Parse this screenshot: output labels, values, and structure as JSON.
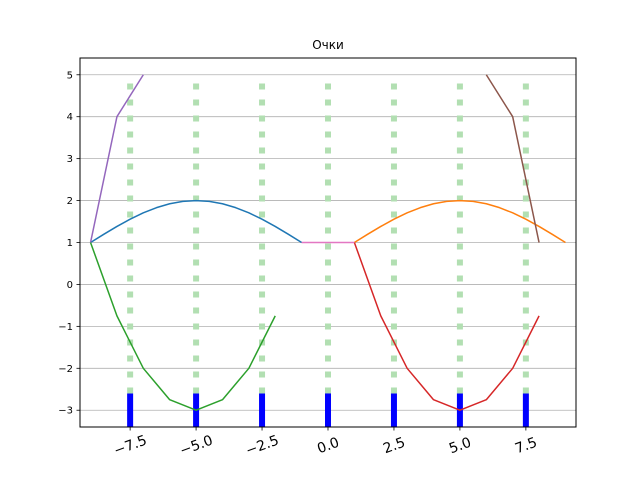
{
  "chart_data": {
    "type": "line",
    "title": "Очки",
    "xlabel": "",
    "ylabel": "",
    "xlim": [
      -9.4,
      9.4
    ],
    "ylim": [
      -3.4,
      5.4
    ],
    "grid": "horizontal",
    "xticks": [
      -7.5,
      -5.0,
      -2.5,
      0.0,
      2.5,
      5.0,
      7.5
    ],
    "xtick_labels": [
      "−7.5",
      "−5.0",
      "−2.5",
      "0.0",
      "2.5",
      "5.0",
      "7.5"
    ],
    "xtick_rotation_deg": 20,
    "yticks": [
      -3,
      -2,
      -1,
      0,
      1,
      2,
      3,
      4,
      5
    ],
    "ytick_labels": [
      "−3",
      "−2",
      "−1",
      "0",
      "1",
      "2",
      "3",
      "4",
      "5"
    ],
    "vertical_dotted_lines": {
      "x": [
        -7.5,
        -5.0,
        -2.5,
        0.0,
        2.5,
        5.0,
        7.5
      ],
      "y_range": [
        -2.6,
        5.0
      ],
      "color": "#b2dfb2"
    },
    "blue_bars": {
      "x": [
        -7.5,
        -5.0,
        -2.5,
        0.0,
        2.5,
        5.0,
        7.5
      ],
      "y_range": [
        -3.4,
        -2.6
      ],
      "color": "#0000ff"
    },
    "series": [
      {
        "color": "#1f77b4",
        "x": [
          -9.0,
          -8.5,
          -8.0,
          -7.5,
          -7.0,
          -6.5,
          -6.0,
          -5.5,
          -5.0,
          -4.5,
          -4.0,
          -3.5,
          -3.0,
          -2.5,
          -2.0,
          -1.5,
          -1.0
        ],
        "y": [
          1.0,
          1.195,
          1.383,
          1.556,
          1.707,
          1.831,
          1.924,
          1.981,
          2.0,
          1.981,
          1.924,
          1.831,
          1.707,
          1.556,
          1.383,
          1.195,
          1.0
        ]
      },
      {
        "color": "#ff7f0e",
        "x": [
          1.0,
          1.5,
          2.0,
          2.5,
          3.0,
          3.5,
          4.0,
          4.5,
          5.0,
          5.5,
          6.0,
          6.5,
          7.0,
          7.5,
          8.0,
          8.5,
          9.0
        ],
        "y": [
          1.0,
          1.195,
          1.383,
          1.556,
          1.707,
          1.831,
          1.924,
          1.981,
          2.0,
          1.981,
          1.924,
          1.831,
          1.707,
          1.556,
          1.383,
          1.195,
          1.0
        ]
      },
      {
        "color": "#2ca02c",
        "x": [
          -9.0,
          -8.0,
          -7.0,
          -6.0,
          -5.0,
          -4.0,
          -3.0,
          -2.0
        ],
        "y": [
          1.0,
          -0.75,
          -2.0,
          -2.75,
          -3.0,
          -2.75,
          -2.0,
          -0.75
        ]
      },
      {
        "color": "#d62728",
        "x": [
          1.0,
          2.0,
          3.0,
          4.0,
          5.0,
          6.0,
          7.0,
          8.0
        ],
        "y": [
          1.0,
          -0.75,
          -2.0,
          -2.75,
          -3.0,
          -2.75,
          -2.0,
          -0.75
        ]
      },
      {
        "color": "#9467bd",
        "x": [
          -9.0,
          -8.0,
          -7.0
        ],
        "y": [
          1.0,
          4.0,
          5.0
        ]
      },
      {
        "color": "#8c564b",
        "x": [
          6.0,
          7.0,
          8.0
        ],
        "y": [
          5.0,
          4.0,
          1.0
        ]
      },
      {
        "color": "#e377c2",
        "x": [
          -1.0,
          1.0
        ],
        "y": [
          1.0,
          1.0
        ]
      }
    ]
  }
}
